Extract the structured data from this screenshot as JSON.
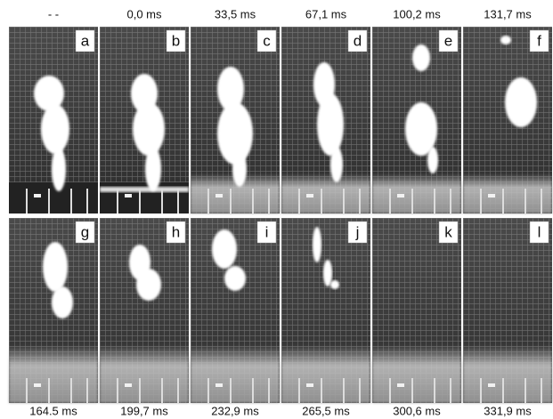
{
  "panels": [
    {
      "letter": "a",
      "time": "- -"
    },
    {
      "letter": "b",
      "time": "0,0 ms"
    },
    {
      "letter": "c",
      "time": "33,5 ms"
    },
    {
      "letter": "d",
      "time": "67,1 ms"
    },
    {
      "letter": "e",
      "time": "100,2 ms"
    },
    {
      "letter": "f",
      "time": "131,7 ms"
    },
    {
      "letter": "g",
      "time": "164.5 ms"
    },
    {
      "letter": "h",
      "time": "199,7 ms"
    },
    {
      "letter": "i",
      "time": "232,9 ms"
    },
    {
      "letter": "j",
      "time": "265,5 ms"
    },
    {
      "letter": "k",
      "time": "300,6 ms"
    },
    {
      "letter": "l",
      "time": "331,9 ms"
    }
  ]
}
